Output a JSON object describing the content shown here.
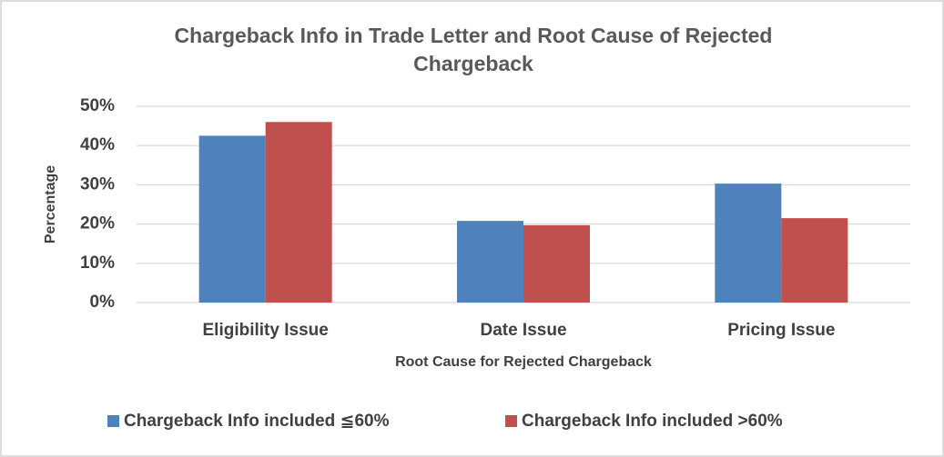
{
  "chart_data": {
    "type": "bar",
    "title": "Chargeback Info in Trade Letter and Root Cause of Rejected Chargeback",
    "x_label": "Root Cause for Rejected Chargeback",
    "y_label": "Percentage",
    "categories": [
      "Eligibility Issue",
      "Date Issue",
      "Pricing Issue"
    ],
    "series": [
      {
        "name": "Chargeback Info included ≦60%",
        "color": "#4f81bd",
        "values": [
          42.5,
          20.8,
          30.3
        ]
      },
      {
        "name": "Chargeback Info included >60%",
        "color": "#c0504d",
        "values": [
          46,
          19.7,
          21.5
        ]
      }
    ],
    "ylim": [
      0,
      50
    ],
    "yticks": [
      {
        "value": 0,
        "label": "0%"
      },
      {
        "value": 10,
        "label": "10%"
      },
      {
        "value": 20,
        "label": "20%"
      },
      {
        "value": 30,
        "label": "30%"
      },
      {
        "value": 40,
        "label": "40%"
      },
      {
        "value": 50,
        "label": "50%"
      }
    ],
    "grid": true,
    "legend": "bottom"
  }
}
